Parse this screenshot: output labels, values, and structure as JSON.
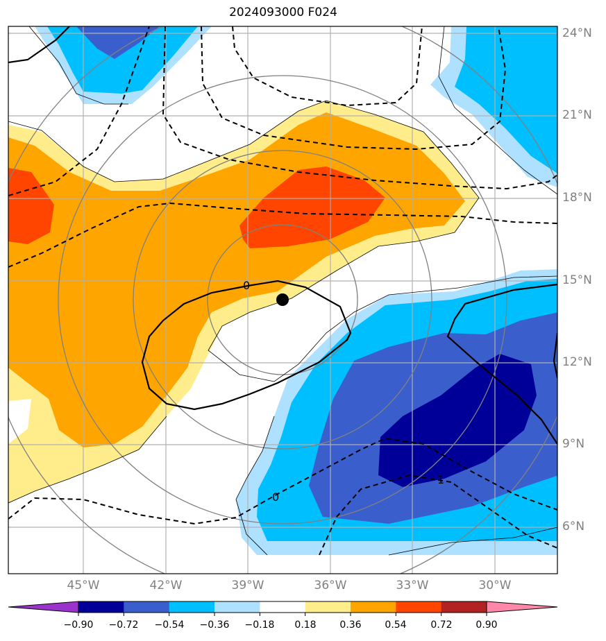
{
  "title": "2024093000 F024",
  "lat_labels": [
    "24°N",
    "21°N",
    "18°N",
    "15°N",
    "12°N",
    "9°N",
    "6°N"
  ],
  "lon_labels": [
    "45°W",
    "42°W",
    "39°W",
    "36°W",
    "33°W",
    "30°W"
  ],
  "contour_labels": [
    "0",
    "0",
    "1"
  ],
  "colorbar": {
    "ticks": [
      "−0.90",
      "−0.72",
      "−0.54",
      "−0.36",
      "−0.18",
      "0.18",
      "0.36",
      "0.54",
      "0.72",
      "0.90"
    ],
    "colors": [
      "#9933cc",
      "#000099",
      "#3a5fcd",
      "#00bfff",
      "#aee1ff",
      "#ffffff",
      "#ffec8b",
      "#ffa500",
      "#ff4500",
      "#b22222",
      "#ff88aa"
    ]
  },
  "colors": {
    "light_blue": "#aee1ff",
    "sky_blue": "#00bfff",
    "royal_blue": "#3a5fcd",
    "navy": "#000099",
    "light_yellow": "#ffec8b",
    "orange": "#ffa500",
    "red_orange": "#ff4500",
    "grid": "#b0b0b0",
    "range_rings": "#808080"
  }
}
